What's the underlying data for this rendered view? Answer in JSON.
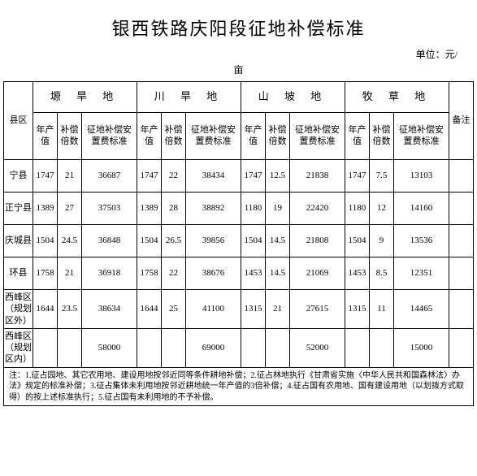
{
  "title": "银西铁路庆阳段征地补偿标准",
  "unit_label": "单位：元/",
  "unit_label2": "亩",
  "header": {
    "county": "县区",
    "groups": [
      "塬 旱 地",
      "川 旱 地",
      "山 坡 地",
      "牧 草 地"
    ],
    "subcols": [
      "年产值",
      "补偿倍数",
      "征地补偿安置费标准"
    ],
    "remark": "备注"
  },
  "rows": [
    {
      "county": "宁县",
      "g1": [
        "1747",
        "21",
        "36687"
      ],
      "g2": [
        "1747",
        "22",
        "38434"
      ],
      "g3": [
        "1747",
        "12.5",
        "21838"
      ],
      "g4": [
        "1747",
        "7.5",
        "13103"
      ],
      "remark": ""
    },
    {
      "county": "正宁县",
      "g1": [
        "1389",
        "27",
        "37503"
      ],
      "g2": [
        "1389",
        "28",
        "38892"
      ],
      "g3": [
        "1180",
        "19",
        "22420"
      ],
      "g4": [
        "1180",
        "12",
        "14160"
      ],
      "remark": ""
    },
    {
      "county": "庆城县",
      "g1": [
        "1504",
        "24.5",
        "36848"
      ],
      "g2": [
        "1504",
        "26.5",
        "39856"
      ],
      "g3": [
        "1504",
        "14.5",
        "21808"
      ],
      "g4": [
        "1504",
        "9",
        "13536"
      ],
      "remark": ""
    },
    {
      "county": "环县",
      "g1": [
        "1758",
        "21",
        "36918"
      ],
      "g2": [
        "1758",
        "22",
        "38676"
      ],
      "g3": [
        "1453",
        "14.5",
        "21069"
      ],
      "g4": [
        "1453",
        "8.5",
        "12351"
      ],
      "remark": ""
    },
    {
      "county": "西峰区（规划区外）",
      "g1": [
        "1644",
        "23.5",
        "38634"
      ],
      "g2": [
        "1644",
        "25",
        "41100"
      ],
      "g3": [
        "1315",
        "21",
        "27615"
      ],
      "g4": [
        "1315",
        "11",
        "14465"
      ],
      "remark": ""
    },
    {
      "county": "西峰区（规划区内）",
      "g1": [
        "",
        "",
        "58000"
      ],
      "g2": [
        "",
        "",
        "69000"
      ],
      "g3": [
        "",
        "",
        "52000"
      ],
      "g4": [
        "",
        "",
        "15000"
      ],
      "remark": ""
    }
  ],
  "footnote": "注：1.征占园地、其它农用地、建设用地按邻近同等条件耕地补偿；2.征占林地执行《甘肃省实施〈中华人民共和国森林法〉办法》规定的标准补偿；3.征占集体未利用地按邻近耕地统一年产值的3倍补偿；4.征占国有农用地、国有建设用地（以划拨方式取得）的按上述标准执行；5.征占国有未利用地的不予补偿。",
  "colors": {
    "background": "#ffffff",
    "border": "#000000",
    "text": "#000000"
  }
}
